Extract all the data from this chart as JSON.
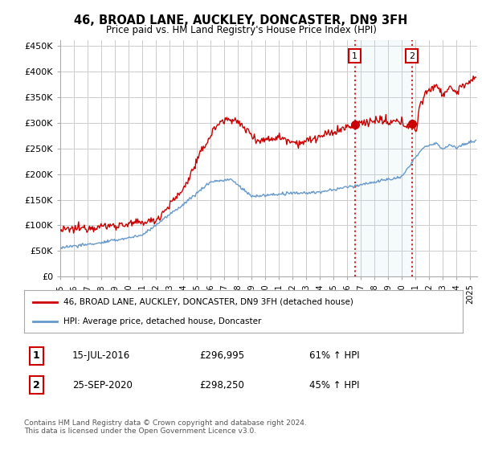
{
  "title": "46, BROAD LANE, AUCKLEY, DONCASTER, DN9 3FH",
  "subtitle": "Price paid vs. HM Land Registry's House Price Index (HPI)",
  "ylabel_ticks": [
    "£0",
    "£50K",
    "£100K",
    "£150K",
    "£200K",
    "£250K",
    "£300K",
    "£350K",
    "£400K",
    "£450K"
  ],
  "ytick_values": [
    0,
    50000,
    100000,
    150000,
    200000,
    250000,
    300000,
    350000,
    400000,
    450000
  ],
  "ylim": [
    0,
    460000
  ],
  "xlim_start": 1995.0,
  "xlim_end": 2025.5,
  "xtick_years": [
    1995,
    1996,
    1997,
    1998,
    1999,
    2000,
    2001,
    2002,
    2003,
    2004,
    2005,
    2006,
    2007,
    2008,
    2009,
    2010,
    2011,
    2012,
    2013,
    2014,
    2015,
    2016,
    2017,
    2018,
    2019,
    2020,
    2021,
    2022,
    2023,
    2024,
    2025
  ],
  "sale1_x": 2016.54,
  "sale1_y": 296995,
  "sale1_label": "1",
  "sale2_x": 2020.73,
  "sale2_y": 298250,
  "sale2_label": "2",
  "sale1_date": "15-JUL-2016",
  "sale1_price": "£296,995",
  "sale1_hpi": "61% ↑ HPI",
  "sale2_date": "25-SEP-2020",
  "sale2_price": "£298,250",
  "sale2_hpi": "45% ↑ HPI",
  "legend_red": "46, BROAD LANE, AUCKLEY, DONCASTER, DN9 3FH (detached house)",
  "legend_blue": "HPI: Average price, detached house, Doncaster",
  "footer": "Contains HM Land Registry data © Crown copyright and database right 2024.\nThis data is licensed under the Open Government Licence v3.0.",
  "red_color": "#cc0000",
  "blue_color": "#6699cc",
  "background_color": "#ffffff",
  "grid_color": "#cccccc",
  "label_box_color": "#cc0000"
}
